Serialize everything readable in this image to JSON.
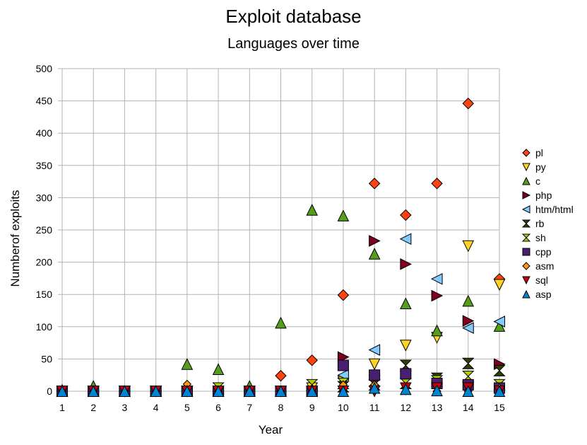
{
  "chart_data": {
    "type": "scatter",
    "title": "Exploit database",
    "subtitle": "Languages over time",
    "xlabel": "Year",
    "ylabel": "Numberof exploits",
    "xlim": [
      1,
      15
    ],
    "ylim": [
      0,
      500
    ],
    "x_ticks": [
      1,
      2,
      3,
      4,
      5,
      6,
      7,
      8,
      9,
      10,
      11,
      12,
      13,
      14,
      15
    ],
    "y_ticks": [
      0,
      50,
      100,
      150,
      200,
      250,
      300,
      350,
      400,
      450,
      500
    ],
    "grid": true,
    "legend_position": "right",
    "x": [
      1,
      2,
      3,
      4,
      5,
      6,
      7,
      8,
      9,
      10,
      11,
      12,
      13,
      14,
      15
    ],
    "series": [
      {
        "name": "pl",
        "marker": "diamond",
        "color": "#ff420e",
        "values": [
          0,
          0,
          0,
          0,
          5,
          5,
          0,
          24,
          48,
          149,
          322,
          273,
          322,
          446,
          174
        ]
      },
      {
        "name": "py",
        "marker": "triangle-down",
        "color": "#ffd320",
        "values": [
          0,
          0,
          0,
          0,
          0,
          0,
          0,
          0,
          5,
          15,
          42,
          71,
          83,
          225,
          165
        ]
      },
      {
        "name": "c",
        "marker": "triangle-up",
        "color": "#579d1c",
        "values": [
          2,
          8,
          0,
          0,
          42,
          34,
          8,
          106,
          281,
          272,
          213,
          136,
          94,
          140,
          101
        ]
      },
      {
        "name": "php",
        "marker": "triangle-right",
        "color": "#7e0021",
        "values": [
          0,
          0,
          0,
          0,
          0,
          0,
          0,
          0,
          0,
          53,
          233,
          197,
          148,
          109,
          42
        ]
      },
      {
        "name": "htm/html",
        "marker": "triangle-left",
        "color": "#83caff",
        "values": [
          0,
          0,
          0,
          0,
          0,
          0,
          0,
          0,
          0,
          25,
          64,
          236,
          174,
          98,
          108
        ]
      },
      {
        "name": "rb",
        "marker": "bowtie",
        "color": "#314004",
        "values": [
          0,
          0,
          0,
          0,
          0,
          0,
          0,
          0,
          0,
          7,
          10,
          40,
          20,
          43,
          32
        ]
      },
      {
        "name": "sh",
        "marker": "hourglass",
        "color": "#aecf00",
        "values": [
          0,
          0,
          0,
          0,
          0,
          5,
          0,
          0,
          10,
          12,
          16,
          12,
          16,
          23,
          10
        ]
      },
      {
        "name": "cpp",
        "marker": "square",
        "color": "#4b1f6f",
        "values": [
          0,
          0,
          0,
          0,
          0,
          0,
          0,
          0,
          0,
          40,
          25,
          27,
          12,
          10,
          5
        ]
      },
      {
        "name": "asm",
        "marker": "diamond",
        "color": "#ff950e",
        "values": [
          0,
          0,
          0,
          0,
          11,
          0,
          0,
          0,
          0,
          10,
          10,
          5,
          0,
          0,
          5
        ]
      },
      {
        "name": "sql",
        "marker": "triangle-down",
        "color": "#c5000b",
        "values": [
          0,
          0,
          0,
          0,
          0,
          0,
          0,
          0,
          0,
          0,
          0,
          5,
          5,
          5,
          0
        ]
      },
      {
        "name": "asp",
        "marker": "triangle-up",
        "color": "#0084d1",
        "values": [
          0,
          0,
          0,
          0,
          0,
          0,
          0,
          0,
          0,
          0,
          5,
          3,
          1,
          0,
          0
        ]
      }
    ]
  }
}
